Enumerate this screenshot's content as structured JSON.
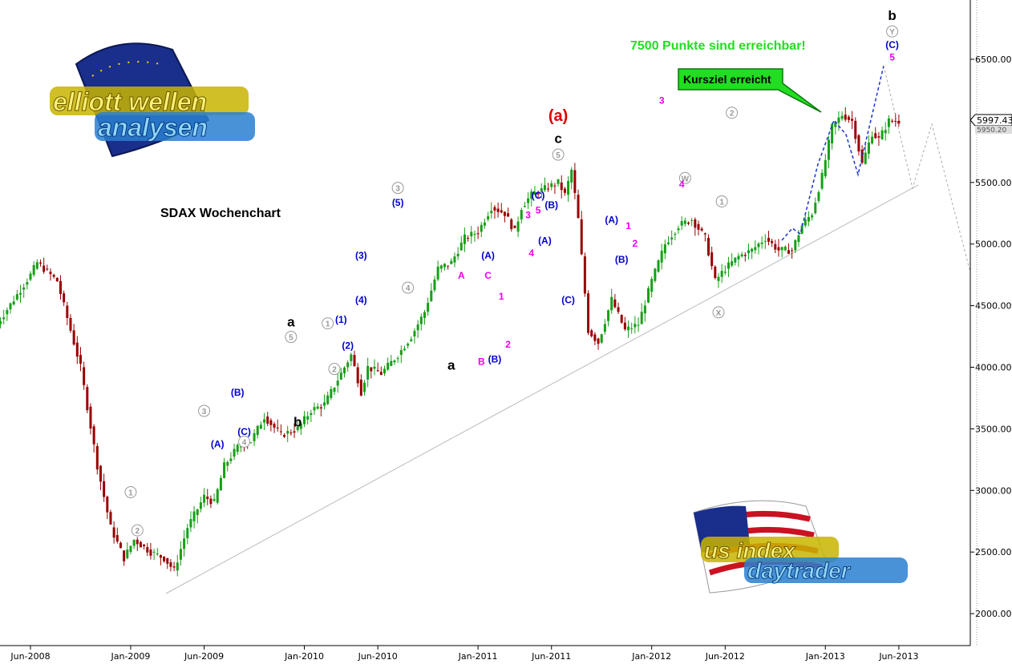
{
  "chart_data": {
    "type": "candlestick",
    "title": "SDAX Wochenchart",
    "note": "7500 Punkte sind erreichbar!",
    "callout": "Kursziel erreicht",
    "last_price": "5997.43",
    "last_price_2": "5950.20",
    "ylim": [
      1950,
      6800
    ],
    "yticks": [
      "6500.00",
      "6000.00",
      "5500.00",
      "5000.00",
      "4500.00",
      "4000.00",
      "3500.00",
      "3000.00",
      "2500.00",
      "2000.00"
    ],
    "ytick_values": [
      6500,
      6000,
      5500,
      5000,
      4500,
      4000,
      3500,
      3000,
      2500,
      2000
    ],
    "xtick_labels": [
      "Jun-2008",
      "Jan-2009",
      "Jun-2009",
      "Jan-2010",
      "Jun-2010",
      "Jan-2011",
      "Jun-2011",
      "Jan-2012",
      "Jun-2012",
      "Jan-2013",
      "Jun-2013"
    ],
    "xtick_weeks": [
      0,
      30,
      52,
      82,
      104,
      134,
      156,
      186,
      208,
      238,
      260
    ],
    "path_weeks": [
      -10,
      0,
      2,
      8,
      15,
      20,
      24,
      28,
      31,
      36,
      40,
      43,
      47,
      52,
      55,
      58,
      62,
      66,
      70,
      75,
      80,
      84,
      88,
      92,
      96,
      99,
      101,
      105,
      110,
      114,
      118,
      122,
      126,
      130,
      134,
      138,
      142,
      145,
      147,
      150,
      154,
      158,
      160,
      162,
      164,
      167,
      170,
      174,
      178,
      182,
      186,
      190,
      194,
      198,
      202,
      205,
      208,
      212,
      216,
      220,
      224,
      228,
      231,
      234,
      237,
      240,
      243,
      246,
      249,
      252,
      254,
      257,
      260
    ],
    "path_values": [
      4350,
      4750,
      4850,
      4700,
      4000,
      3200,
      2700,
      2450,
      2600,
      2500,
      2450,
      2350,
      2700,
      2950,
      2900,
      3200,
      3350,
      3400,
      3600,
      3450,
      3500,
      3650,
      3700,
      3900,
      4100,
      3800,
      4000,
      3950,
      4100,
      4250,
      4450,
      4800,
      4850,
      5050,
      5100,
      5300,
      5250,
      5100,
      5300,
      5400,
      5450,
      5500,
      5400,
      5600,
      5200,
      4300,
      4200,
      4550,
      4300,
      4350,
      4700,
      5000,
      5150,
      5200,
      5050,
      4700,
      4800,
      4900,
      4950,
      5050,
      4950,
      4950,
      5150,
      5250,
      5550,
      5950,
      6050,
      6000,
      5650,
      5900,
      5850,
      6000,
      6000
    ],
    "labels": [
      {
        "text": "(a)",
        "w": 158,
        "v": 6000,
        "color": "#dd0000",
        "size": 20
      },
      {
        "text": "c",
        "w": 158,
        "v": 5820,
        "color": "#000000",
        "size": 17
      },
      {
        "text": "5",
        "w": 158,
        "v": 5700,
        "color": "#999999",
        "circle": true
      },
      {
        "text": "W",
        "w": 196,
        "v": 5510,
        "color": "#999999",
        "circle": true
      },
      {
        "text": "X",
        "w": 206,
        "v": 4420,
        "color": "#999999",
        "circle": true
      },
      {
        "text": "Y",
        "w": 258,
        "v": 6700,
        "color": "#999999",
        "circle": true
      },
      {
        "text": "b",
        "w": 258,
        "v": 6820,
        "color": "#000000",
        "size": 17
      },
      {
        "text": "(C)",
        "w": 258,
        "v": 6590,
        "color": "#0000cc"
      },
      {
        "text": "5",
        "w": 258,
        "v": 6490,
        "color": "#ee00ee"
      },
      {
        "text": "1",
        "w": 30,
        "v": 2960,
        "color": "#999999",
        "circle": true
      },
      {
        "text": "2",
        "w": 32,
        "v": 2650,
        "color": "#999999",
        "circle": true
      },
      {
        "text": "3",
        "w": 52,
        "v": 3620,
        "color": "#999999",
        "circle": true
      },
      {
        "text": "(A)",
        "w": 56,
        "v": 3350,
        "color": "#0000cc"
      },
      {
        "text": "(B)",
        "w": 62,
        "v": 3770,
        "color": "#0000cc"
      },
      {
        "text": "(C)",
        "w": 64,
        "v": 3450,
        "color": "#0000cc"
      },
      {
        "text": "4",
        "w": 64,
        "v": 3370,
        "color": "#999999",
        "circle": true
      },
      {
        "text": "a",
        "w": 78,
        "v": 4330,
        "color": "#000000",
        "size": 17
      },
      {
        "text": "5",
        "w": 78,
        "v": 4220,
        "color": "#999999",
        "circle": true
      },
      {
        "text": "b",
        "w": 80,
        "v": 3520,
        "color": "#000000",
        "size": 17
      },
      {
        "text": "1",
        "w": 89,
        "v": 4330,
        "color": "#999999",
        "circle": true
      },
      {
        "text": "(1)",
        "w": 93,
        "v": 4360,
        "color": "#0000cc"
      },
      {
        "text": "(2)",
        "w": 95,
        "v": 4150,
        "color": "#0000cc"
      },
      {
        "text": "2",
        "w": 91,
        "v": 3960,
        "color": "#999999",
        "circle": true
      },
      {
        "text": "(3)",
        "w": 99,
        "v": 4880,
        "color": "#0000cc"
      },
      {
        "text": "(4)",
        "w": 99,
        "v": 4520,
        "color": "#0000cc"
      },
      {
        "text": "3",
        "w": 110,
        "v": 5430,
        "color": "#999999",
        "circle": true
      },
      {
        "text": "(5)",
        "w": 110,
        "v": 5310,
        "color": "#0000cc"
      },
      {
        "text": "4",
        "w": 113,
        "v": 4620,
        "color": "#999999",
        "circle": true
      },
      {
        "text": "A",
        "w": 129,
        "v": 4720,
        "color": "#ee00ee"
      },
      {
        "text": "a",
        "w": 126,
        "v": 3980,
        "color": "#000000",
        "size": 17
      },
      {
        "text": "B",
        "w": 135,
        "v": 4020,
        "color": "#ee00ee"
      },
      {
        "text": "(A)",
        "w": 137,
        "v": 4880,
        "color": "#0000cc"
      },
      {
        "text": "C",
        "w": 137,
        "v": 4720,
        "color": "#ee00ee"
      },
      {
        "text": "(B)",
        "w": 139,
        "v": 4040,
        "color": "#0000cc"
      },
      {
        "text": "1",
        "w": 141,
        "v": 4550,
        "color": "#ee00ee"
      },
      {
        "text": "2",
        "w": 143,
        "v": 4160,
        "color": "#ee00ee"
      },
      {
        "text": "(C)",
        "w": 152,
        "v": 5370,
        "color": "#0000cc"
      },
      {
        "text": "5",
        "w": 152,
        "v": 5250,
        "color": "#ee00ee"
      },
      {
        "text": "3",
        "w": 149,
        "v": 5210,
        "color": "#ee00ee"
      },
      {
        "text": "4",
        "w": 150,
        "v": 4900,
        "color": "#ee00ee"
      },
      {
        "text": "(B)",
        "w": 156,
        "v": 5290,
        "color": "#0000cc"
      },
      {
        "text": "(A)",
        "w": 154,
        "v": 5000,
        "color": "#0000cc"
      },
      {
        "text": "(C)",
        "w": 161,
        "v": 4520,
        "color": "#0000cc"
      },
      {
        "text": "(A)",
        "w": 174,
        "v": 5170,
        "color": "#0000cc"
      },
      {
        "text": "(B)",
        "w": 177,
        "v": 4850,
        "color": "#0000cc"
      },
      {
        "text": "1",
        "w": 179,
        "v": 5120,
        "color": "#ee00ee"
      },
      {
        "text": "2",
        "w": 181,
        "v": 4980,
        "color": "#ee00ee"
      },
      {
        "text": "3",
        "w": 189,
        "v": 6140,
        "color": "#ee00ee"
      },
      {
        "text": "4",
        "w": 195,
        "v": 5460,
        "color": "#ee00ee"
      },
      {
        "text": "2",
        "w": 210,
        "v": 6040,
        "color": "#999999",
        "circle": true
      },
      {
        "text": "1",
        "w": 207,
        "v": 5320,
        "color": "#999999",
        "circle": true
      }
    ]
  },
  "logos": {
    "top_left_line1": "elliott wellen",
    "top_left_line2": "analysen",
    "bottom_right_line1": "us index",
    "bottom_right_line2": "daytrader"
  },
  "colors": {
    "up": "#16a016",
    "down": "#990000",
    "wave_forecast": "#1a33cc",
    "note": "#22dd22",
    "callout_bg": "#22dd22"
  }
}
